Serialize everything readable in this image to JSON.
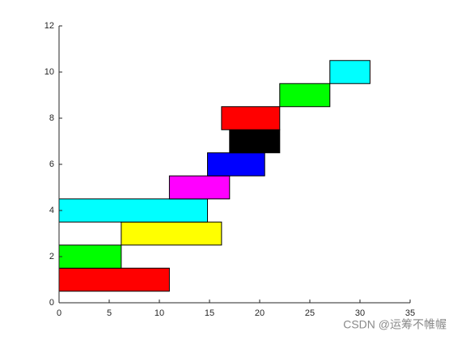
{
  "chart_data": {
    "type": "floating-bar",
    "bars": [
      {
        "y": 1,
        "start": 0,
        "end": 11,
        "color": "#ff0000"
      },
      {
        "y": 2,
        "start": 0,
        "end": 6.2,
        "color": "#00ff00"
      },
      {
        "y": 3,
        "start": 6.2,
        "end": 16.2,
        "color": "#ffff00"
      },
      {
        "y": 4,
        "start": 0,
        "end": 14.8,
        "color": "#00ffff"
      },
      {
        "y": 5,
        "start": 11,
        "end": 17,
        "color": "#ff00ff"
      },
      {
        "y": 6,
        "start": 14.8,
        "end": 20.5,
        "color": "#0000ff"
      },
      {
        "y": 7,
        "start": 17,
        "end": 22,
        "color": "#000000"
      },
      {
        "y": 8,
        "start": 16.2,
        "end": 22,
        "color": "#ff0000"
      },
      {
        "y": 9,
        "start": 22,
        "end": 27,
        "color": "#00ff00"
      },
      {
        "y": 10,
        "start": 27,
        "end": 31,
        "color": "#00ffff"
      }
    ],
    "bar_height": 1,
    "xlim": [
      0,
      35
    ],
    "xticks": [
      0,
      5,
      10,
      15,
      20,
      25,
      30,
      35
    ],
    "ylim": [
      0,
      12
    ],
    "yticks": [
      0,
      2,
      4,
      6,
      8,
      10,
      12
    ],
    "watermark": "CSDN @运筹不帷幄"
  }
}
